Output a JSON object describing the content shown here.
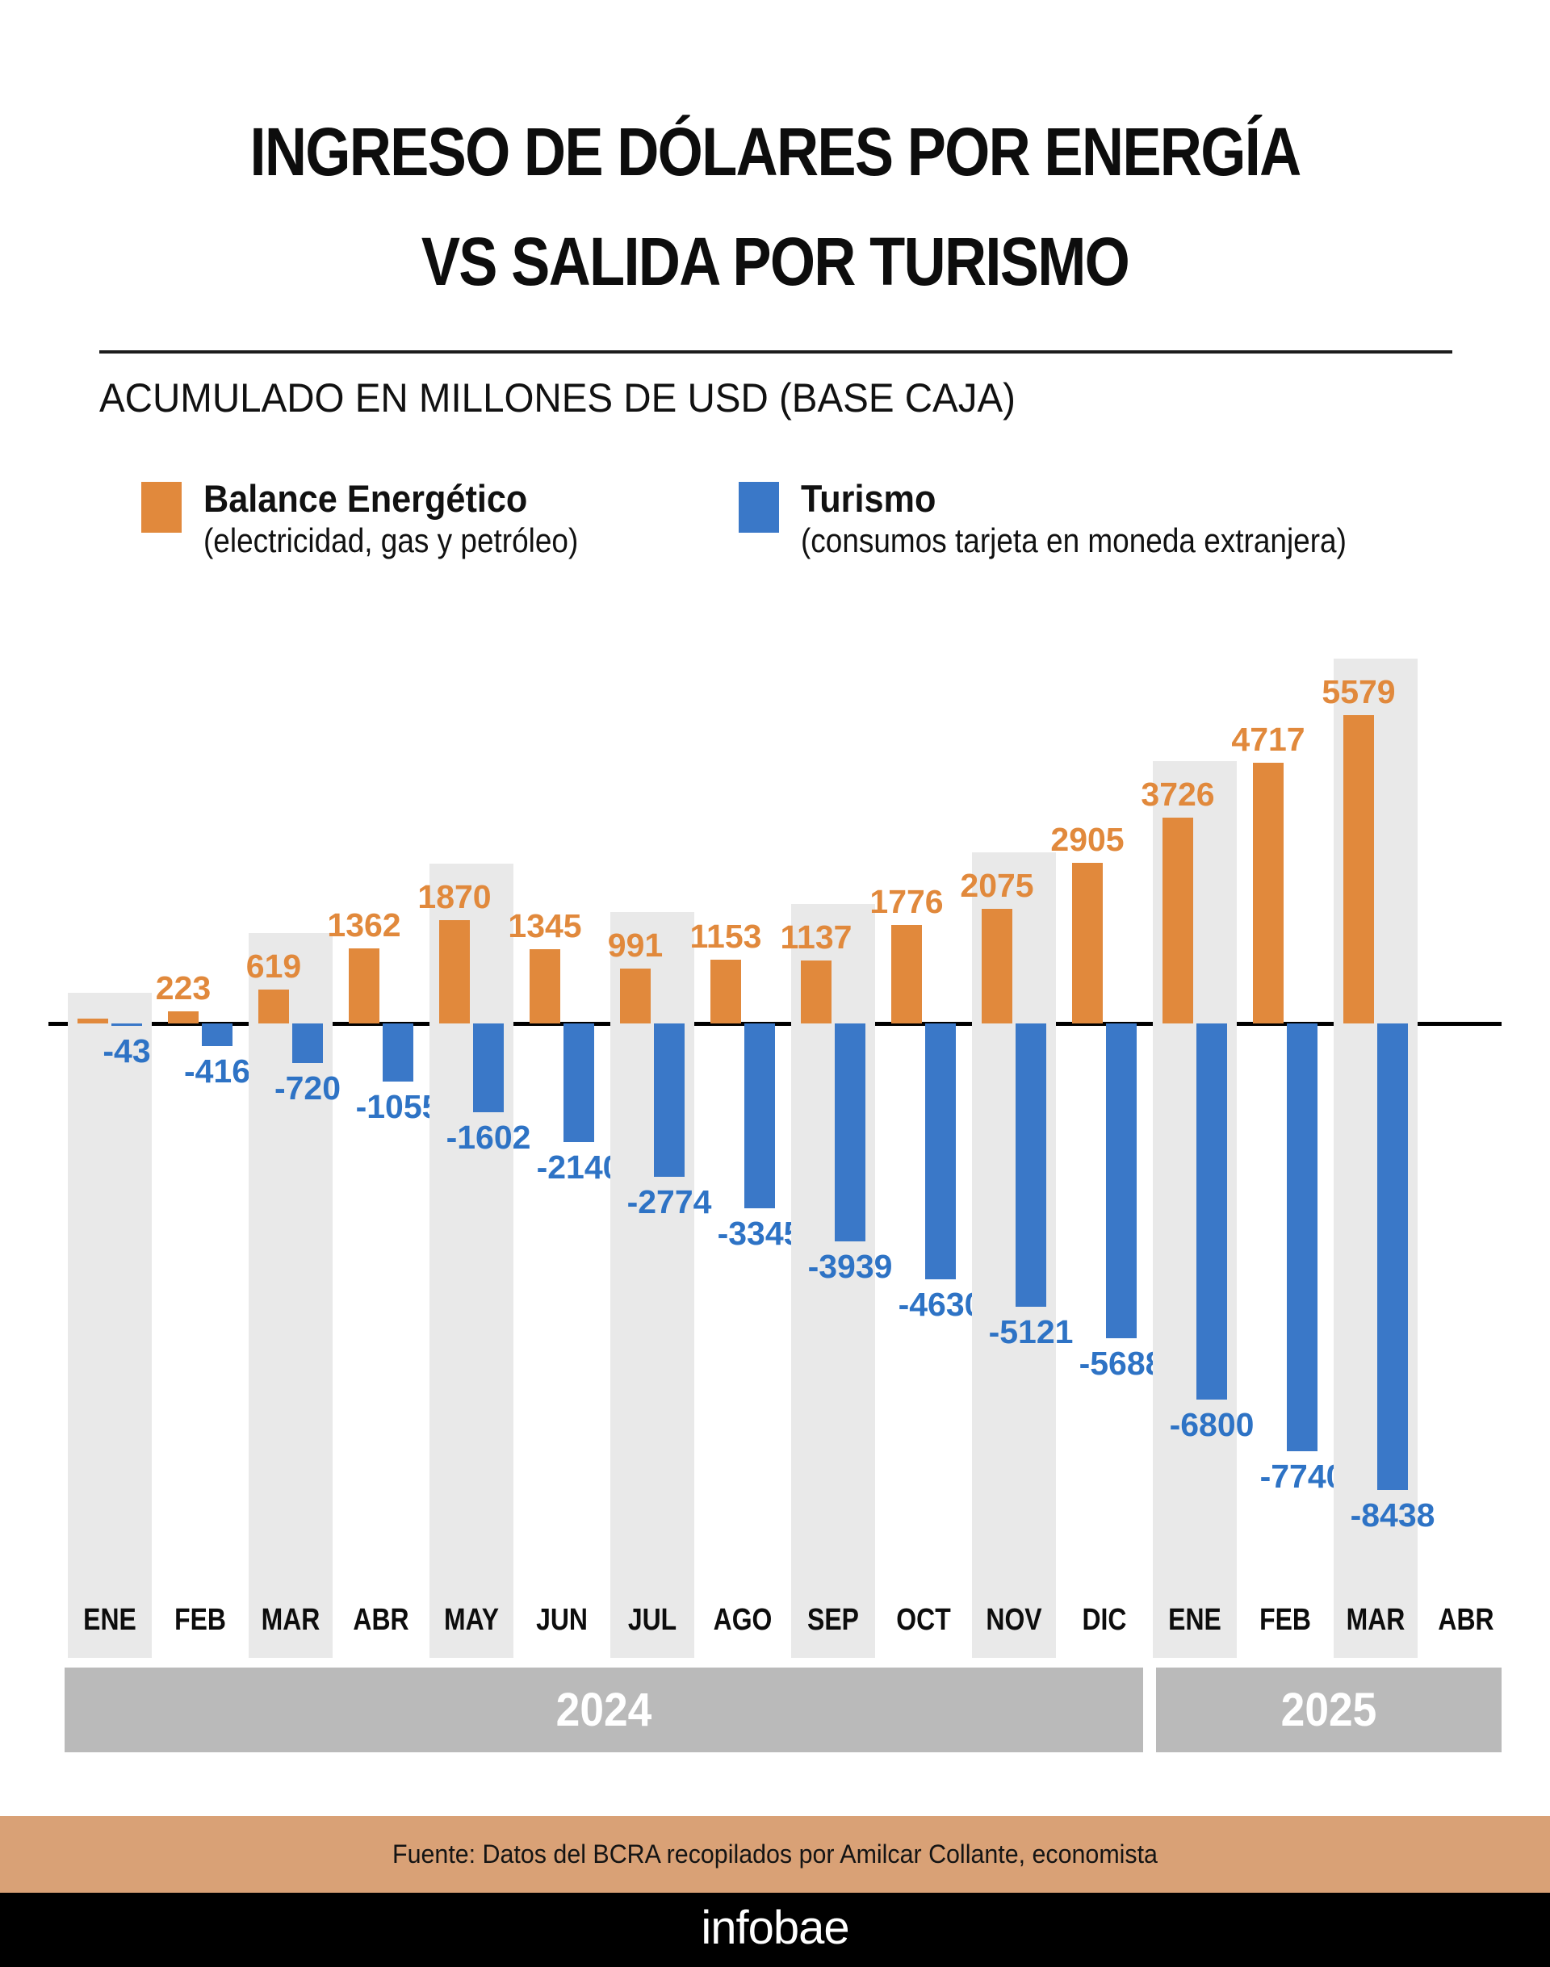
{
  "header": {
    "title_line1": "INGRESO DE DÓLARES POR ENERGÍA",
    "title_line2": "VS SALIDA POR TURISMO",
    "subtitle": "ACUMULADO EN MILLONES DE USD (BASE CAJA)"
  },
  "legend": {
    "energia": {
      "label": "Balance Energético",
      "sublabel": "(electricidad, gas y petróleo)",
      "color": "#E1893C"
    },
    "turismo": {
      "label": "Turismo",
      "sublabel": "(consumos tarjeta en moneda extranjera)",
      "color": "#3A78C8"
    }
  },
  "footer": {
    "source": "Fuente: Datos del BCRA recopilados por Amilcar Collante, economista",
    "source_band_color": "#D9A176",
    "logo": "infobae"
  },
  "chart_data": {
    "type": "bar",
    "title": "INGRESO DE DÓLARES POR ENERGÍA VS SALIDA POR TURISMO",
    "subtitle": "ACUMULADO EN MILLONES DE USD (BASE CAJA)",
    "unit": "millones de USD (base caja), acumulado",
    "baseline": 0,
    "grid": false,
    "legend_position": "top",
    "categories": [
      "ENE",
      "FEB",
      "MAR",
      "ABR",
      "MAY",
      "JUN",
      "JUL",
      "AGO",
      "SEP",
      "OCT",
      "NOV",
      "DIC",
      "ENE",
      "FEB",
      "MAR",
      "ABR"
    ],
    "category_years": [
      2024,
      2024,
      2024,
      2024,
      2024,
      2024,
      2024,
      2024,
      2024,
      2024,
      2024,
      2024,
      2025,
      2025,
      2025,
      2025
    ],
    "series": [
      {
        "name": "Balance Energético (electricidad, gas y petróleo)",
        "color": "#E1893C",
        "values": [
          null,
          223,
          619,
          1362,
          1870,
          1345,
          991,
          1153,
          1137,
          1776,
          2075,
          2905,
          3726,
          4717,
          5579,
          null
        ],
        "labels": [
          "",
          "223",
          "619",
          "1362",
          "1870",
          "1345",
          "991",
          "1153",
          "1137",
          "1776",
          "2075",
          "2905",
          "3726",
          "4717",
          "5579",
          ""
        ]
      },
      {
        "name": "Turismo (consumos tarjeta en moneda extranjera)",
        "color": "#3A78C8",
        "label_color": "#2E73C5",
        "values": [
          -43,
          -416,
          -720,
          -1055,
          -1602,
          -2140,
          -2774,
          -3345,
          -3939,
          -4630,
          -5121,
          -5688,
          -6800,
          -7740,
          -8438,
          null
        ],
        "labels": [
          "-43",
          "-416",
          "-720",
          "-1055",
          "-1602",
          "-2140",
          "-2774",
          "-3345",
          "-3939",
          "-4630",
          "-5121",
          "-5688",
          "-6800",
          "-7740",
          "-8438",
          ""
        ]
      }
    ],
    "year_bands": [
      {
        "label": "2024",
        "from": 0,
        "to": 11
      },
      {
        "label": "2025",
        "from": 12,
        "to": 15
      }
    ],
    "stripe_color": "#E9E9E9",
    "year_band_color": "#BABABA",
    "notes": "Primera barra naranja (ENE 2024) mínima y sin etiqueta; ABR 2025 sin barras"
  }
}
